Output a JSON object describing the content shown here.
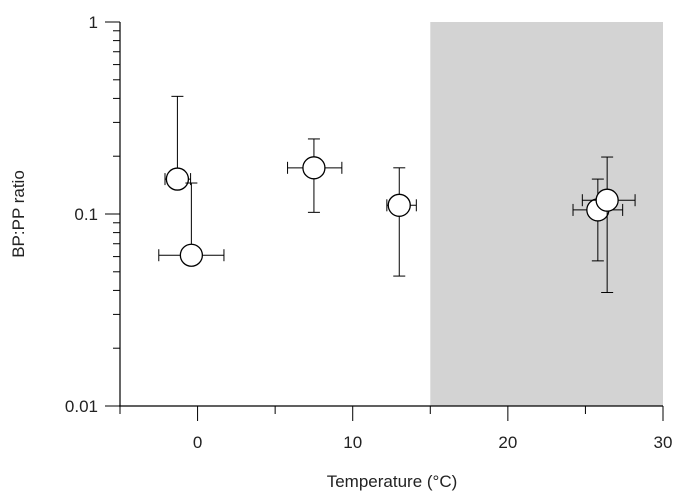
{
  "chart_data": {
    "type": "scatter",
    "xlabel": "Temperature (°C)",
    "ylabel": "BP:PP ratio",
    "x": [
      -1.3,
      -0.4,
      7.5,
      13.0,
      25.8,
      26.4
    ],
    "values": [
      0.152,
      0.061,
      0.174,
      0.111,
      0.105,
      0.118
    ],
    "ylow": [
      0.145,
      0.061,
      0.102,
      0.0475,
      0.057,
      0.039
    ],
    "yhigh": [
      0.41,
      0.145,
      0.246,
      0.174,
      0.152,
      0.198
    ],
    "xlow": [
      -2.1,
      -2.5,
      5.8,
      12.2,
      24.2,
      24.8
    ],
    "xhigh": [
      -0.45,
      1.7,
      9.3,
      14.1,
      27.4,
      28.2
    ],
    "xlim": [
      -5,
      30
    ],
    "xticks": [
      0,
      10,
      20,
      30
    ],
    "xminorticks": [
      -5,
      5,
      15,
      25
    ],
    "ylim": [
      0.01,
      1
    ],
    "ylog": true,
    "yticks": [
      0.01,
      0.1,
      1
    ],
    "yminorticks": [
      0.02,
      0.03,
      0.04,
      0.05,
      0.06,
      0.07,
      0.08,
      0.09,
      0.2,
      0.3,
      0.4,
      0.5,
      0.6,
      0.7,
      0.8,
      0.9
    ],
    "shaded_xrange": [
      15,
      30
    ],
    "shade_color": "#d3d3d3",
    "marker_color": "#ffffff",
    "line_color": "#000000"
  }
}
